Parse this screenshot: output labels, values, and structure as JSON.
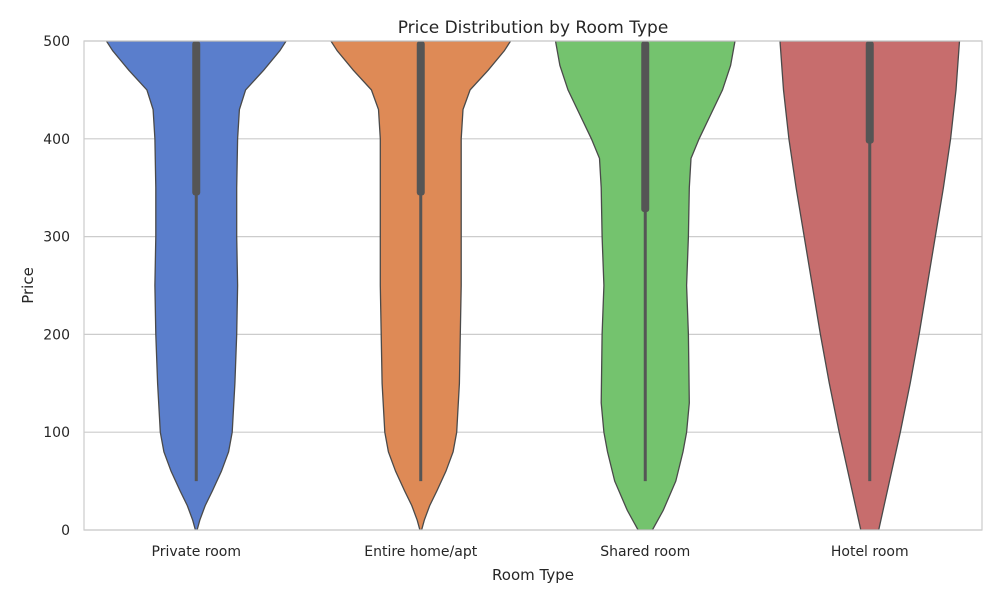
{
  "chart_data": {
    "type": "violin",
    "title": "Price Distribution by Room Type",
    "xlabel": "Room Type",
    "ylabel": "Price",
    "ylim": [
      0,
      500
    ],
    "yticks": [
      0,
      100,
      200,
      300,
      400,
      500
    ],
    "grid": "horizontal",
    "legend": "none",
    "categories": [
      "Private room",
      "Entire home/apt",
      "Shared room",
      "Hotel room"
    ],
    "colors": [
      "#5a7ecc",
      "#de8a56",
      "#74c36e",
      "#c76d6d"
    ],
    "stats": [
      {
        "min": 50,
        "q1": 342,
        "q3": 500,
        "max": 500
      },
      {
        "min": 50,
        "q1": 342,
        "q3": 500,
        "max": 500
      },
      {
        "min": 50,
        "q1": 325,
        "q3": 500,
        "max": 500
      },
      {
        "min": 50,
        "q1": 395,
        "q3": 500,
        "max": 500
      }
    ],
    "density": [
      [
        [
          0,
          0.01
        ],
        [
          10,
          0.04
        ],
        [
          25,
          0.1
        ],
        [
          40,
          0.18
        ],
        [
          60,
          0.28
        ],
        [
          80,
          0.36
        ],
        [
          100,
          0.4
        ],
        [
          150,
          0.43
        ],
        [
          200,
          0.45
        ],
        [
          250,
          0.46
        ],
        [
          300,
          0.45
        ],
        [
          350,
          0.45
        ],
        [
          400,
          0.46
        ],
        [
          430,
          0.48
        ],
        [
          450,
          0.55
        ],
        [
          470,
          0.75
        ],
        [
          490,
          0.93
        ],
        [
          500,
          1.0
        ]
      ],
      [
        [
          0,
          0.01
        ],
        [
          10,
          0.04
        ],
        [
          25,
          0.1
        ],
        [
          40,
          0.18
        ],
        [
          60,
          0.28
        ],
        [
          80,
          0.36
        ],
        [
          100,
          0.4
        ],
        [
          150,
          0.43
        ],
        [
          200,
          0.44
        ],
        [
          250,
          0.45
        ],
        [
          300,
          0.45
        ],
        [
          350,
          0.45
        ],
        [
          400,
          0.45
        ],
        [
          430,
          0.47
        ],
        [
          450,
          0.55
        ],
        [
          470,
          0.75
        ],
        [
          490,
          0.93
        ],
        [
          500,
          1.0
        ]
      ],
      [
        [
          0,
          0.08
        ],
        [
          20,
          0.2
        ],
        [
          50,
          0.34
        ],
        [
          80,
          0.42
        ],
        [
          100,
          0.46
        ],
        [
          130,
          0.49
        ],
        [
          200,
          0.48
        ],
        [
          250,
          0.46
        ],
        [
          300,
          0.48
        ],
        [
          350,
          0.49
        ],
        [
          380,
          0.51
        ],
        [
          400,
          0.6
        ],
        [
          425,
          0.73
        ],
        [
          450,
          0.86
        ],
        [
          475,
          0.95
        ],
        [
          500,
          1.0
        ]
      ],
      [
        [
          0,
          0.1
        ],
        [
          50,
          0.22
        ],
        [
          100,
          0.34
        ],
        [
          150,
          0.45
        ],
        [
          200,
          0.55
        ],
        [
          250,
          0.64
        ],
        [
          300,
          0.73
        ],
        [
          350,
          0.82
        ],
        [
          400,
          0.9
        ],
        [
          450,
          0.96
        ],
        [
          500,
          1.0
        ]
      ]
    ]
  }
}
